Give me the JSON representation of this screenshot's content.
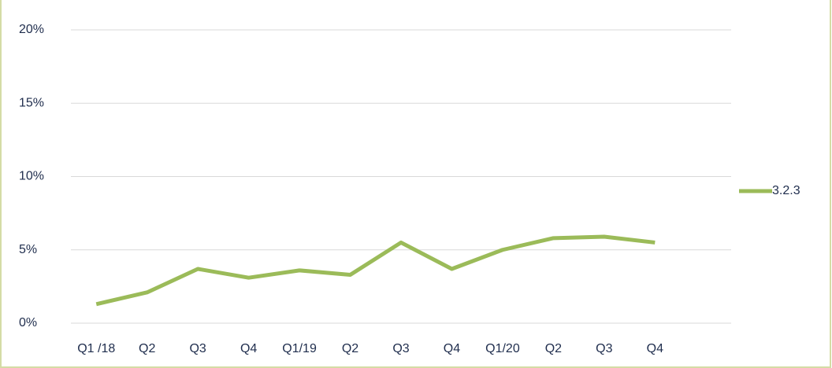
{
  "chart_data": {
    "type": "line",
    "categories": [
      "Q1 /18",
      "Q2",
      "Q3",
      "Q4",
      "Q1/19",
      "Q2",
      "Q3",
      "Q4",
      "Q1/20",
      "Q2",
      "Q3",
      "Q4",
      null
    ],
    "series": [
      {
        "name": "3.2.3",
        "color": "#9bbb59",
        "values": [
          1.3,
          2.1,
          3.7,
          3.1,
          3.6,
          3.3,
          5.5,
          3.7,
          5.0,
          5.8,
          5.9,
          5.5,
          null
        ]
      }
    ],
    "ylim": [
      0,
      20
    ],
    "yticks": [
      {
        "value": 0,
        "label": "0%"
      },
      {
        "value": 5,
        "label": "5%"
      },
      {
        "value": 10,
        "label": "10%"
      },
      {
        "value": 15,
        "label": "15%"
      },
      {
        "value": 20,
        "label": "20%"
      }
    ],
    "grid": true,
    "legend": "right"
  }
}
